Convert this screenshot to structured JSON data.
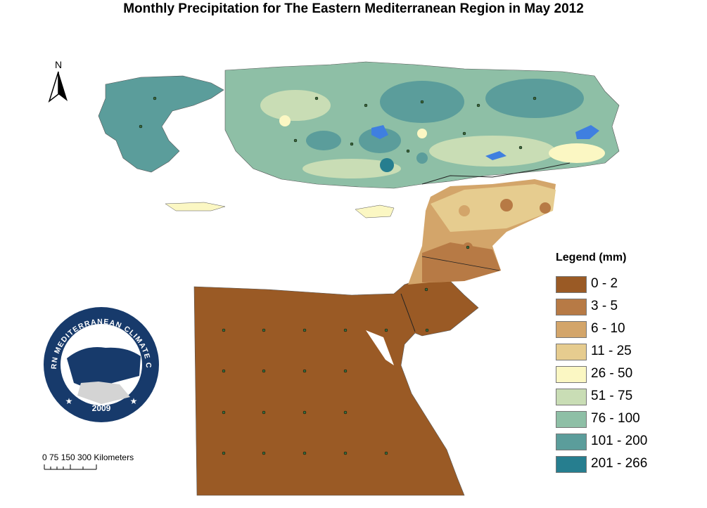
{
  "title": "Monthly Precipitation for The Eastern Mediterranean Region in May 2012",
  "north_label": "N",
  "scale_bar": {
    "label": "0  75 150     300 Kilometers"
  },
  "legend": {
    "title": "Legend (mm)",
    "items": [
      {
        "label": "0 - 2",
        "color": "#9a5a25"
      },
      {
        "label": "3 - 5",
        "color": "#b77a45"
      },
      {
        "label": "6 - 10",
        "color": "#d3a56a"
      },
      {
        "label": "11 - 25",
        "color": "#e6cc8f"
      },
      {
        "label": "26 - 50",
        "color": "#fbf7c3"
      },
      {
        "label": "51 - 75",
        "color": "#c9ddb5"
      },
      {
        "label": "76 - 100",
        "color": "#8ebfa6"
      },
      {
        "label": "101 - 200",
        "color": "#5b9d9b"
      },
      {
        "label": "201 - 266",
        "color": "#267e8f"
      }
    ]
  },
  "logo": {
    "text_top": "EASTERN MEDITERRANEAN CLIMATE CENTRE",
    "year": "2009",
    "color": "#173a6b"
  }
}
